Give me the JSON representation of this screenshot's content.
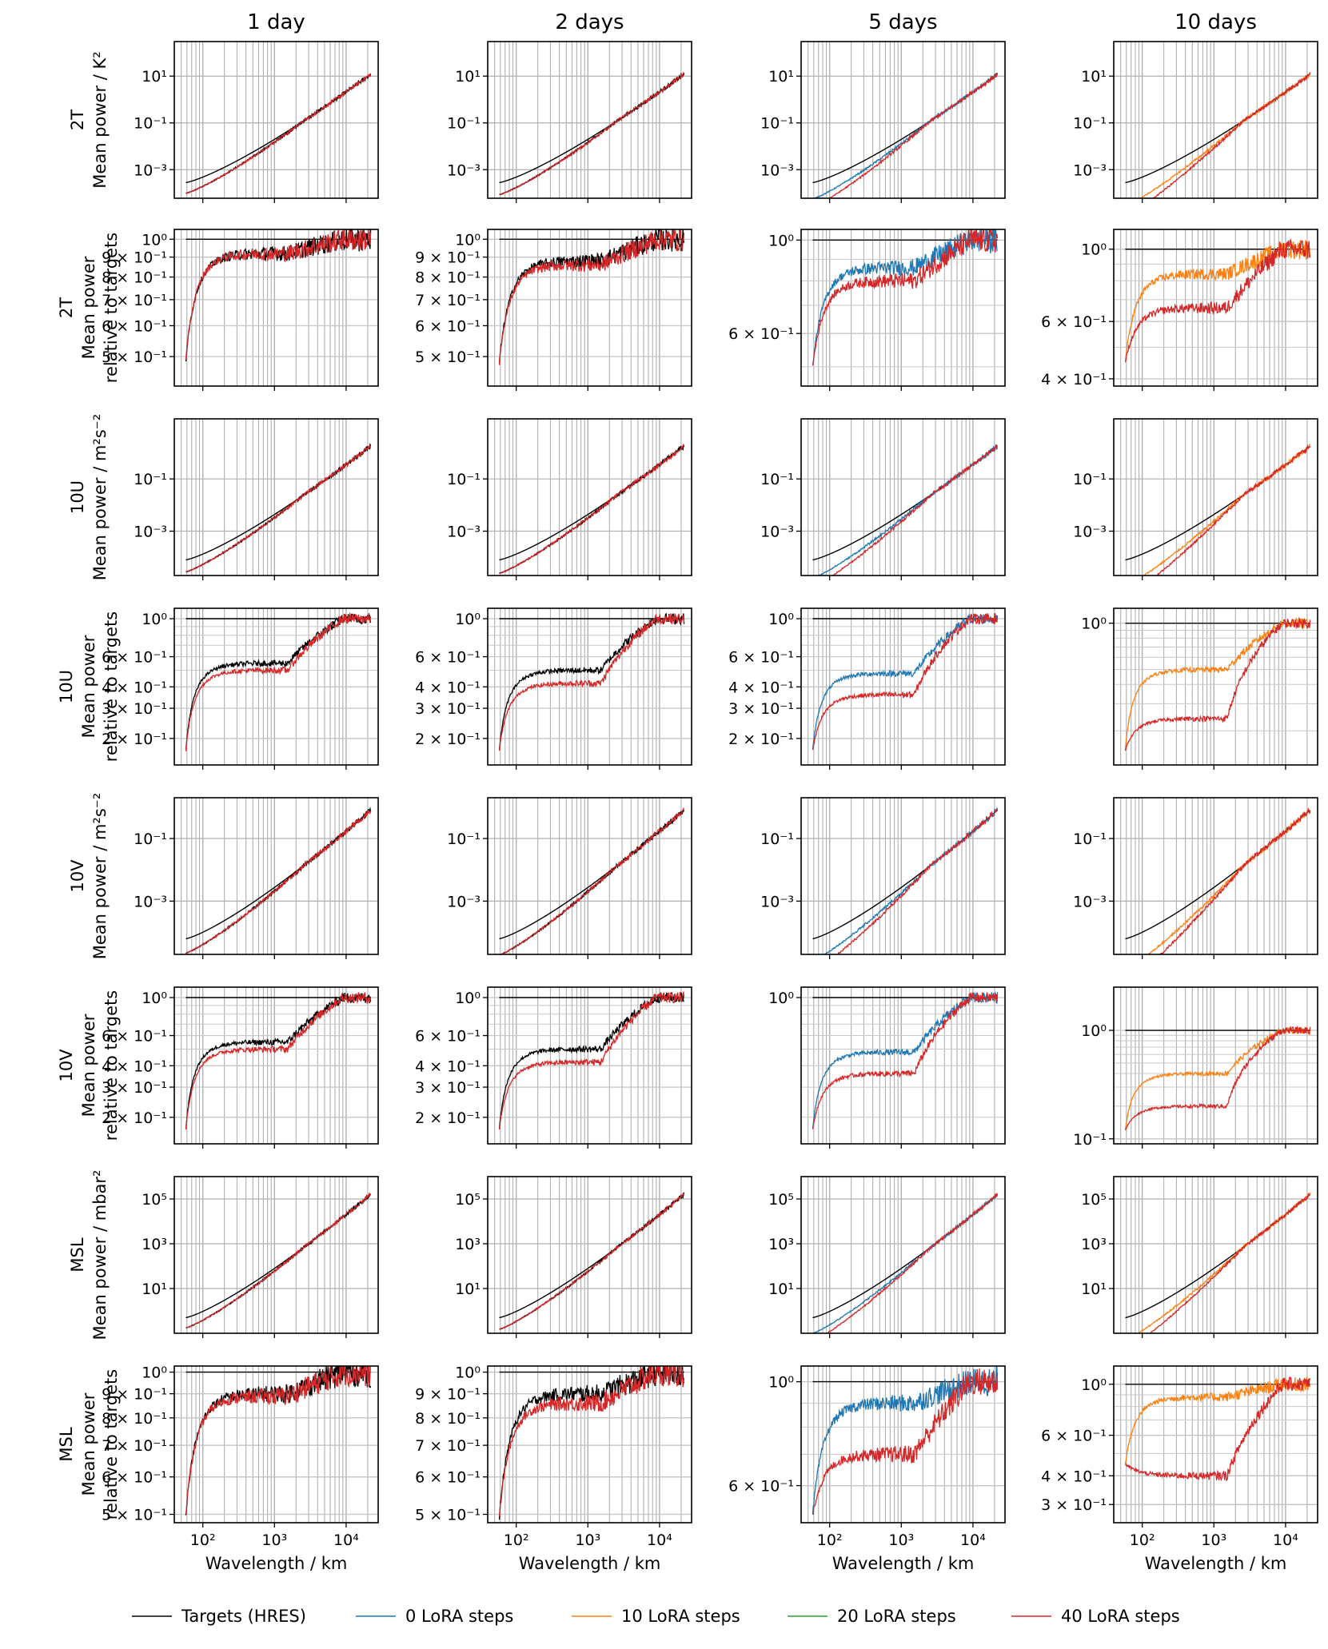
{
  "figure": {
    "columns": [
      {
        "title": "1 day",
        "lead_days": 1
      },
      {
        "title": "2 days",
        "lead_days": 2
      },
      {
        "title": "5 days",
        "lead_days": 5
      },
      {
        "title": "10 days",
        "lead_days": 10
      }
    ],
    "rows": [
      {
        "variable": "2T",
        "kind": "absolute",
        "ylabel_lines": [
          "2T",
          "Mean power / K²"
        ],
        "yscale": "log",
        "ylim": [
          6e-05,
          300
        ],
        "yticks": [
          0.001,
          0.1,
          10
        ],
        "ytick_labels": [
          "10⁻³",
          "10⁻¹",
          "10¹"
        ],
        "end": 12
      },
      {
        "variable": "2T",
        "kind": "relative",
        "ylabel_lines": [
          "2T",
          "Mean power",
          "relative to targets"
        ],
        "yscale": "log"
      },
      {
        "variable": "10U",
        "kind": "absolute",
        "ylabel_lines": [
          "10U",
          "Mean power / m²s⁻²"
        ],
        "yscale": "log",
        "ylim": [
          2e-05,
          20
        ],
        "yticks": [
          0.001,
          0.1
        ],
        "ytick_labels": [
          "10⁻³",
          "10⁻¹"
        ],
        "end": 1.8
      },
      {
        "variable": "10U",
        "kind": "relative",
        "ylabel_lines": [
          "10U",
          "Mean power",
          "relative to targets"
        ],
        "yscale": "log"
      },
      {
        "variable": "10V",
        "kind": "absolute",
        "ylabel_lines": [
          "10V",
          "Mean power / m²s⁻²"
        ],
        "yscale": "log",
        "ylim": [
          2e-05,
          2
        ],
        "yticks": [
          0.001,
          0.1
        ],
        "ytick_labels": [
          "10⁻³",
          "10⁻¹"
        ],
        "end": 0.8
      },
      {
        "variable": "10V",
        "kind": "relative",
        "ylabel_lines": [
          "10V",
          "Mean power",
          "relative to targets"
        ],
        "yscale": "log"
      },
      {
        "variable": "MSL",
        "kind": "absolute",
        "ylabel_lines": [
          "MSL",
          "Mean power / mbar²"
        ],
        "yscale": "log",
        "ylim": [
          0.1,
          1000000
        ],
        "yticks": [
          10,
          1000,
          100000
        ],
        "ytick_labels": [
          "10¹",
          "10³",
          "10⁵"
        ],
        "end": 160000
      },
      {
        "variable": "MSL",
        "kind": "relative",
        "ylabel_lines": [
          "MSL",
          "Mean power",
          "relative to targets"
        ],
        "yscale": "log"
      }
    ],
    "xaxis": {
      "label": "Wavelength / km",
      "scale": "log",
      "xlim": [
        40,
        28000
      ],
      "ticks": [
        100,
        1000,
        10000
      ],
      "tick_labels": [
        "10²",
        "10³",
        "10⁴"
      ]
    },
    "legend": {
      "placement": "bottom-center",
      "entries": [
        {
          "label": "Targets (HRES)",
          "color": "#000000"
        },
        {
          "label": "0 LoRA steps",
          "color": "#1f77b4"
        },
        {
          "label": "10 LoRA steps",
          "color": "#ff7f0e"
        },
        {
          "label": "20 LoRA steps",
          "color": "#2ca02c"
        },
        {
          "label": "40 LoRA steps",
          "color": "#d62728"
        }
      ]
    }
  },
  "chart_data": [
    {
      "panel": "2T / 1 day",
      "type": "line",
      "ylim": [
        0.42,
        1.06
      ],
      "yticks": [
        0.5,
        0.6,
        0.7,
        0.8,
        0.9,
        1.0
      ],
      "ytick_labels": [
        "5 × 10⁻¹",
        "6 × 10⁻¹",
        "7 × 10⁻¹",
        "8 × 10⁻¹",
        "9 × 10⁻¹",
        "10⁰"
      ],
      "dip": [
        0.92,
        0.92
      ],
      "low": 0.49
    },
    {
      "panel": "2T / 2 days",
      "type": "line",
      "ylim": [
        0.42,
        1.06
      ],
      "yticks": [
        0.5,
        0.6,
        0.7,
        0.8,
        0.9,
        1.0
      ],
      "ytick_labels": [
        "5 × 10⁻¹",
        "6 × 10⁻¹",
        "7 × 10⁻¹",
        "8 × 10⁻¹",
        "9 × 10⁻¹",
        "10⁰"
      ],
      "dip": [
        0.88,
        0.86
      ],
      "low": 0.48
    },
    {
      "panel": "2T / 5 days",
      "type": "line",
      "ylim": [
        0.45,
        1.06
      ],
      "yticks": [
        0.6,
        1.0
      ],
      "ytick_labels": [
        "6 × 10⁻¹",
        "10⁰"
      ],
      "dip": [
        0.86,
        0.8
      ],
      "low": 0.5
    },
    {
      "panel": "2T / 10 days",
      "type": "line",
      "ylim": [
        0.38,
        1.15
      ],
      "yticks": [
        0.4,
        0.6,
        1.0
      ],
      "ytick_labels": [
        "4 × 10⁻¹",
        "6 × 10⁻¹",
        "10⁰"
      ],
      "dip": [
        0.84,
        0.66
      ],
      "low": 0.45
    },
    {
      "panel": "10U / 1 day",
      "type": "line",
      "ylim": [
        0.14,
        1.15
      ],
      "yticks": [
        0.2,
        0.3,
        0.4,
        0.6,
        1.0
      ],
      "ytick_labels": [
        "2 × 10⁻¹",
        "3 × 10⁻¹",
        "4 × 10⁻¹",
        "6 × 10⁻¹",
        "10⁰"
      ],
      "dip": [
        0.55,
        0.5
      ],
      "low": 0.17
    },
    {
      "panel": "10U / 2 days",
      "type": "line",
      "ylim": [
        0.14,
        1.15
      ],
      "yticks": [
        0.2,
        0.3,
        0.4,
        0.6,
        1.0
      ],
      "ytick_labels": [
        "2 × 10⁻¹",
        "3 × 10⁻¹",
        "4 × 10⁻¹",
        "6 × 10⁻¹",
        "10⁰"
      ],
      "dip": [
        0.5,
        0.42
      ],
      "low": 0.17
    },
    {
      "panel": "10U / 5 days",
      "type": "line",
      "ylim": [
        0.14,
        1.15
      ],
      "yticks": [
        0.2,
        0.3,
        0.4,
        0.6,
        1.0
      ],
      "ytick_labels": [
        "2 × 10⁻¹",
        "3 × 10⁻¹",
        "4 × 10⁻¹",
        "6 × 10⁻¹",
        "10⁰"
      ],
      "dip": [
        0.48,
        0.36
      ],
      "low": 0.17
    },
    {
      "panel": "10U / 10 days",
      "type": "line",
      "ylim": [
        0.12,
        1.25
      ],
      "yticks": [
        1.0
      ],
      "ytick_labels": [
        "10⁰"
      ],
      "dip": [
        0.5,
        0.24
      ],
      "low": 0.15
    },
    {
      "panel": "10V / 1 day",
      "type": "line",
      "ylim": [
        0.14,
        1.15
      ],
      "yticks": [
        0.2,
        0.3,
        0.4,
        0.6,
        1.0
      ],
      "ytick_labels": [
        "2 × 10⁻¹",
        "3 × 10⁻¹",
        "4 × 10⁻¹",
        "6 × 10⁻¹",
        "10⁰"
      ],
      "dip": [
        0.55,
        0.5
      ],
      "low": 0.17
    },
    {
      "panel": "10V / 2 days",
      "type": "line",
      "ylim": [
        0.14,
        1.15
      ],
      "yticks": [
        0.2,
        0.3,
        0.4,
        0.6,
        1.0
      ],
      "ytick_labels": [
        "2 × 10⁻¹",
        "3 × 10⁻¹",
        "4 × 10⁻¹",
        "6 × 10⁻¹",
        "10⁰"
      ],
      "dip": [
        0.5,
        0.42
      ],
      "low": 0.17
    },
    {
      "panel": "10V / 5 days",
      "type": "line",
      "ylim": [
        0.14,
        1.15
      ],
      "yticks": [
        1.0
      ],
      "ytick_labels": [
        "10⁰"
      ],
      "dip": [
        0.48,
        0.36
      ],
      "low": 0.17
    },
    {
      "panel": "10V / 10 days",
      "type": "line",
      "ylim": [
        0.09,
        2.5
      ],
      "yticks": [
        0.1,
        1.0
      ],
      "ytick_labels": [
        "10⁻¹",
        "10⁰"
      ],
      "dip": [
        0.4,
        0.2
      ],
      "low": 0.12
    },
    {
      "panel": "MSL / 1 day",
      "type": "line",
      "ylim": [
        0.48,
        1.03
      ],
      "yticks": [
        0.5,
        0.6,
        0.7,
        0.8,
        0.9,
        1.0
      ],
      "ytick_labels": [
        "5 × 10⁻¹",
        "6 × 10⁻¹",
        "7 × 10⁻¹",
        "8 × 10⁻¹",
        "9 × 10⁻¹",
        "10⁰"
      ],
      "dip": [
        0.9,
        0.89
      ],
      "low": 0.5
    },
    {
      "panel": "MSL / 2 days",
      "type": "line",
      "ylim": [
        0.48,
        1.03
      ],
      "yticks": [
        0.5,
        0.6,
        0.7,
        0.8,
        0.9,
        1.0
      ],
      "ytick_labels": [
        "5 × 10⁻¹",
        "6 × 10⁻¹",
        "7 × 10⁻¹",
        "8 × 10⁻¹",
        "9 × 10⁻¹",
        "10⁰"
      ],
      "dip": [
        0.9,
        0.86
      ],
      "low": 0.49
    },
    {
      "panel": "MSL / 5 days",
      "type": "line",
      "ylim": [
        0.5,
        1.08
      ],
      "yticks": [
        0.6,
        1.0
      ],
      "ytick_labels": [
        "6 × 10⁻¹",
        "10⁰"
      ],
      "dip": [
        0.9,
        0.7
      ],
      "low": 0.52
    },
    {
      "panel": "MSL / 10 days",
      "type": "line",
      "ylim": [
        0.25,
        1.2
      ],
      "yticks": [
        0.3,
        0.4,
        0.6,
        1.0
      ],
      "ytick_labels": [
        "3 × 10⁻¹",
        "4 × 10⁻¹",
        "6 × 10⁻¹",
        "10⁰"
      ],
      "dip": [
        0.88,
        0.4
      ],
      "low": 0.45
    }
  ]
}
